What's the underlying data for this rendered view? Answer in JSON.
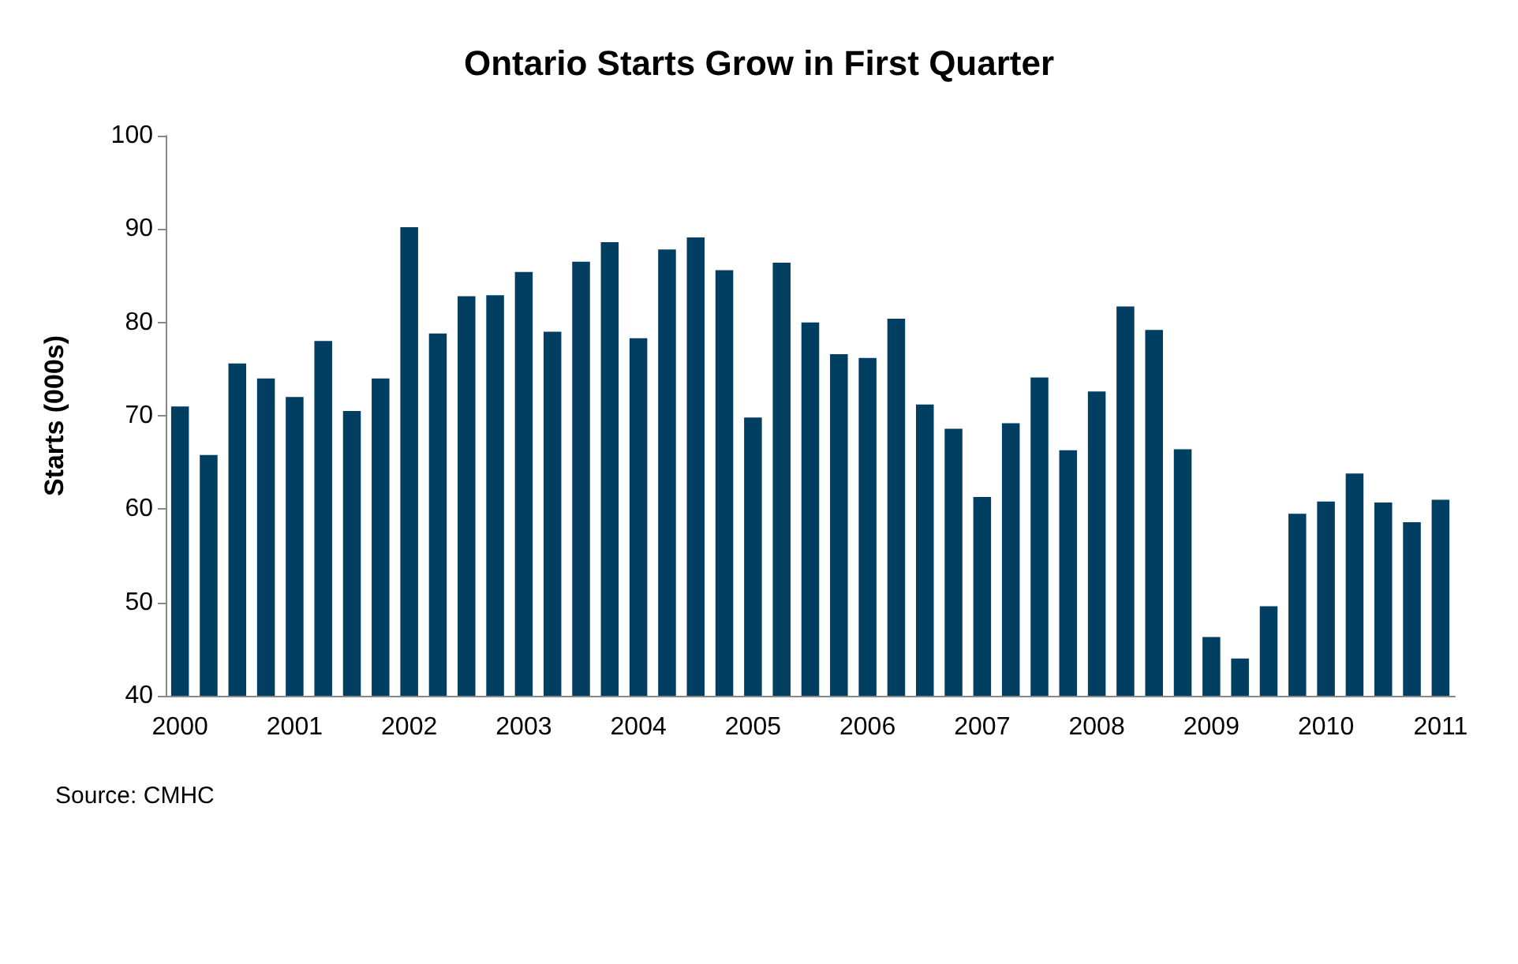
{
  "chart_data": {
    "type": "bar",
    "title": "Ontario Starts Grow in First Quarter",
    "ylabel": "Starts (000s)",
    "categories": [
      "2000",
      null,
      null,
      null,
      "2001",
      null,
      null,
      null,
      "2002",
      null,
      null,
      null,
      "2003",
      null,
      null,
      null,
      "2004",
      null,
      null,
      null,
      "2005",
      null,
      null,
      null,
      "2006",
      null,
      null,
      null,
      "2007",
      null,
      null,
      null,
      "2008",
      null,
      null,
      null,
      "2009",
      null,
      null,
      null,
      "2010",
      null,
      null,
      null,
      "2011"
    ],
    "values": [
      71,
      65.8,
      75.6,
      74,
      72,
      78,
      70.5,
      74,
      90.2,
      78.8,
      82.8,
      82.9,
      85.4,
      79,
      86.5,
      88.6,
      78.3,
      87.8,
      89.1,
      85.6,
      69.8,
      86.4,
      80,
      76.6,
      76.2,
      80.4,
      71.2,
      68.6,
      61.3,
      69.2,
      74.1,
      66.3,
      72.6,
      81.7,
      79.2,
      66.4,
      46.3,
      44,
      49.6,
      59.5,
      60.8,
      63.8,
      60.7,
      58.6,
      61
    ],
    "color": "#003e62",
    "ylim": [
      40,
      100
    ],
    "yticks": [
      40,
      50,
      60,
      70,
      80,
      90,
      100
    ],
    "grid": false,
    "annotations": [
      "Source: CMHC"
    ]
  }
}
